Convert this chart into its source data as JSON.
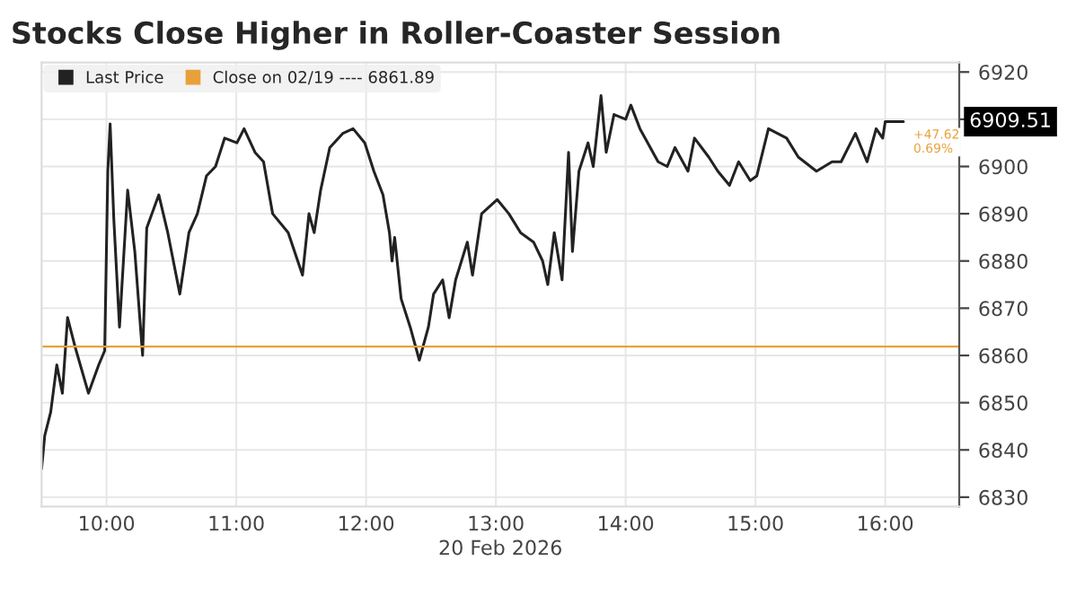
{
  "chart_data": {
    "type": "line",
    "title": "Stocks Close Higher in Roller-Coaster Session",
    "xlabel": "20 Feb 2026",
    "x": [
      9.5,
      9.524,
      9.57,
      9.617,
      9.66,
      9.7,
      9.756,
      9.861,
      9.94,
      9.986,
      10.01,
      10.028,
      10.056,
      10.1,
      10.163,
      10.218,
      10.278,
      10.31,
      10.403,
      10.472,
      10.565,
      10.635,
      10.7,
      10.77,
      10.84,
      10.91,
      11.005,
      11.06,
      11.144,
      11.21,
      11.28,
      11.4,
      11.51,
      11.56,
      11.6,
      11.65,
      11.72,
      11.82,
      11.9,
      11.99,
      12.06,
      12.13,
      12.18,
      12.2,
      12.22,
      12.27,
      12.34,
      12.41,
      12.48,
      12.52,
      12.59,
      12.64,
      12.69,
      12.78,
      12.82,
      12.89,
      13.01,
      13.1,
      13.19,
      13.29,
      13.36,
      13.4,
      13.45,
      13.51,
      13.56,
      13.59,
      13.64,
      13.71,
      13.75,
      13.81,
      13.85,
      13.91,
      14.0,
      14.04,
      14.11,
      14.25,
      14.32,
      14.38,
      14.48,
      14.53,
      14.64,
      14.71,
      14.8,
      14.87,
      14.96,
      15.01,
      15.1,
      15.24,
      15.33,
      15.47,
      15.59,
      15.66,
      15.77,
      15.86,
      15.93,
      15.98,
      16.0,
      16.14
    ],
    "series": [
      {
        "name": "Last Price",
        "color": "#222222",
        "values": [
          6836,
          6843,
          6848,
          6858,
          6852,
          6868,
          6862,
          6852,
          6858,
          6861,
          6899,
          6909,
          6889,
          6866,
          6895,
          6882,
          6860,
          6887,
          6894,
          6886,
          6873,
          6886,
          6890,
          6898,
          6900,
          6906,
          6905,
          6908,
          6903,
          6901,
          6890,
          6886,
          6877,
          6890,
          6886,
          6895,
          6904,
          6907,
          6908,
          6905,
          6899,
          6894,
          6886,
          6880,
          6885,
          6872,
          6866,
          6859,
          6866,
          6873,
          6876,
          6868,
          6876,
          6884,
          6877,
          6890,
          6893,
          6890,
          6886,
          6884,
          6880,
          6875,
          6886,
          6876,
          6903,
          6882,
          6899,
          6905,
          6900,
          6915,
          6903,
          6911,
          6910,
          6913,
          6908,
          6901,
          6900,
          6904,
          6899,
          6906,
          6902,
          6899,
          6896,
          6901,
          6897,
          6898,
          6908,
          6906,
          6902,
          6899,
          6901,
          6901,
          6907,
          6901,
          6908,
          6906,
          6909.5,
          6909.5
        ]
      }
    ],
    "xlim": [
      9.5,
      16.57
    ],
    "xticks": [
      {
        "value": 10,
        "label": "10:00"
      },
      {
        "value": 11,
        "label": "11:00"
      },
      {
        "value": 12,
        "label": "12:00"
      },
      {
        "value": 13,
        "label": "13:00"
      },
      {
        "value": 14,
        "label": "14:00"
      },
      {
        "value": 15,
        "label": "15:00"
      },
      {
        "value": 16,
        "label": "16:00"
      }
    ],
    "ylim": [
      6828,
      6922
    ],
    "yticks": [
      6830,
      6840,
      6850,
      6860,
      6870,
      6880,
      6890,
      6900,
      {
        "value": 6910,
        "label": null
      },
      6920
    ],
    "ref_lines": [
      {
        "axis": "y",
        "value": 6861.89,
        "label": "Close on 02/19 ---- 6861.89",
        "color": "#e8a13a",
        "line_style": "solid"
      }
    ],
    "annotations": [
      "6909.51",
      "+47.62\n0.69%"
    ],
    "grid": true,
    "legend": "top left",
    "marker": "none",
    "line_style": "solid"
  }
}
